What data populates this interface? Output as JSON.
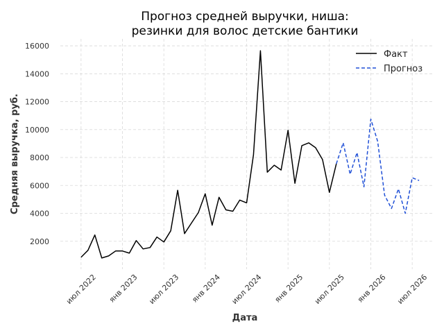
{
  "chart_data": {
    "type": "line",
    "title_line1": "Прогноз средней выручки, ниша:",
    "title_line2": "резинки для волос детские бантики",
    "xlabel": "Дата",
    "ylabel": "Средняя выручка, руб.",
    "ylim": [
      0,
      16500
    ],
    "xlim": [
      "2022-04",
      "2026-10"
    ],
    "y_ticks": [
      2000,
      4000,
      6000,
      8000,
      10000,
      12000,
      14000,
      16000
    ],
    "x_ticks": [
      {
        "date": "2022-07",
        "label": "июл 2022"
      },
      {
        "date": "2023-01",
        "label": "янв 2023"
      },
      {
        "date": "2023-07",
        "label": "июл 2023"
      },
      {
        "date": "2024-01",
        "label": "янв 2024"
      },
      {
        "date": "2024-07",
        "label": "июл 2024"
      },
      {
        "date": "2025-01",
        "label": "янв 2025"
      },
      {
        "date": "2025-07",
        "label": "июл 2025"
      },
      {
        "date": "2026-01",
        "label": "янв 2026"
      },
      {
        "date": "2026-07",
        "label": "июл 2026"
      }
    ],
    "grid": true,
    "legend_position": "top-right",
    "series": [
      {
        "name": "Факт",
        "color": "#000000",
        "style": "solid",
        "points": [
          [
            "2022-07",
            850
          ],
          [
            "2022-08",
            1350
          ],
          [
            "2022-09",
            2450
          ],
          [
            "2022-10",
            800
          ],
          [
            "2022-11",
            950
          ],
          [
            "2022-12",
            1300
          ],
          [
            "2023-01",
            1300
          ],
          [
            "2023-02",
            1150
          ],
          [
            "2023-03",
            2050
          ],
          [
            "2023-04",
            1450
          ],
          [
            "2023-05",
            1550
          ],
          [
            "2023-06",
            2300
          ],
          [
            "2023-07",
            1950
          ],
          [
            "2023-08",
            2750
          ],
          [
            "2023-09",
            5650
          ],
          [
            "2023-10",
            2550
          ],
          [
            "2023-11",
            3300
          ],
          [
            "2023-12",
            4050
          ],
          [
            "2024-01",
            5400
          ],
          [
            "2024-02",
            3150
          ],
          [
            "2024-03",
            5150
          ],
          [
            "2024-04",
            4250
          ],
          [
            "2024-05",
            4150
          ],
          [
            "2024-06",
            4950
          ],
          [
            "2024-07",
            4750
          ],
          [
            "2024-08",
            8200
          ],
          [
            "2024-09",
            15650
          ],
          [
            "2024-10",
            6950
          ],
          [
            "2024-11",
            7450
          ],
          [
            "2024-12",
            7100
          ],
          [
            "2025-01",
            9950
          ],
          [
            "2025-02",
            6150
          ],
          [
            "2025-03",
            8850
          ],
          [
            "2025-04",
            9050
          ],
          [
            "2025-05",
            8700
          ],
          [
            "2025-06",
            7850
          ],
          [
            "2025-07",
            5500
          ],
          [
            "2025-08",
            7550
          ]
        ]
      },
      {
        "name": "Прогноз",
        "color": "#1f4fd6",
        "style": "dashed",
        "points": [
          [
            "2025-08",
            7550
          ],
          [
            "2025-09",
            9050
          ],
          [
            "2025-10",
            6800
          ],
          [
            "2025-11",
            8350
          ],
          [
            "2025-12",
            5900
          ],
          [
            "2026-01",
            10750
          ],
          [
            "2026-02",
            9150
          ],
          [
            "2026-03",
            5300
          ],
          [
            "2026-04",
            4350
          ],
          [
            "2026-05",
            5750
          ],
          [
            "2026-06",
            4000
          ],
          [
            "2026-07",
            6550
          ],
          [
            "2026-08",
            6350
          ]
        ]
      }
    ]
  }
}
